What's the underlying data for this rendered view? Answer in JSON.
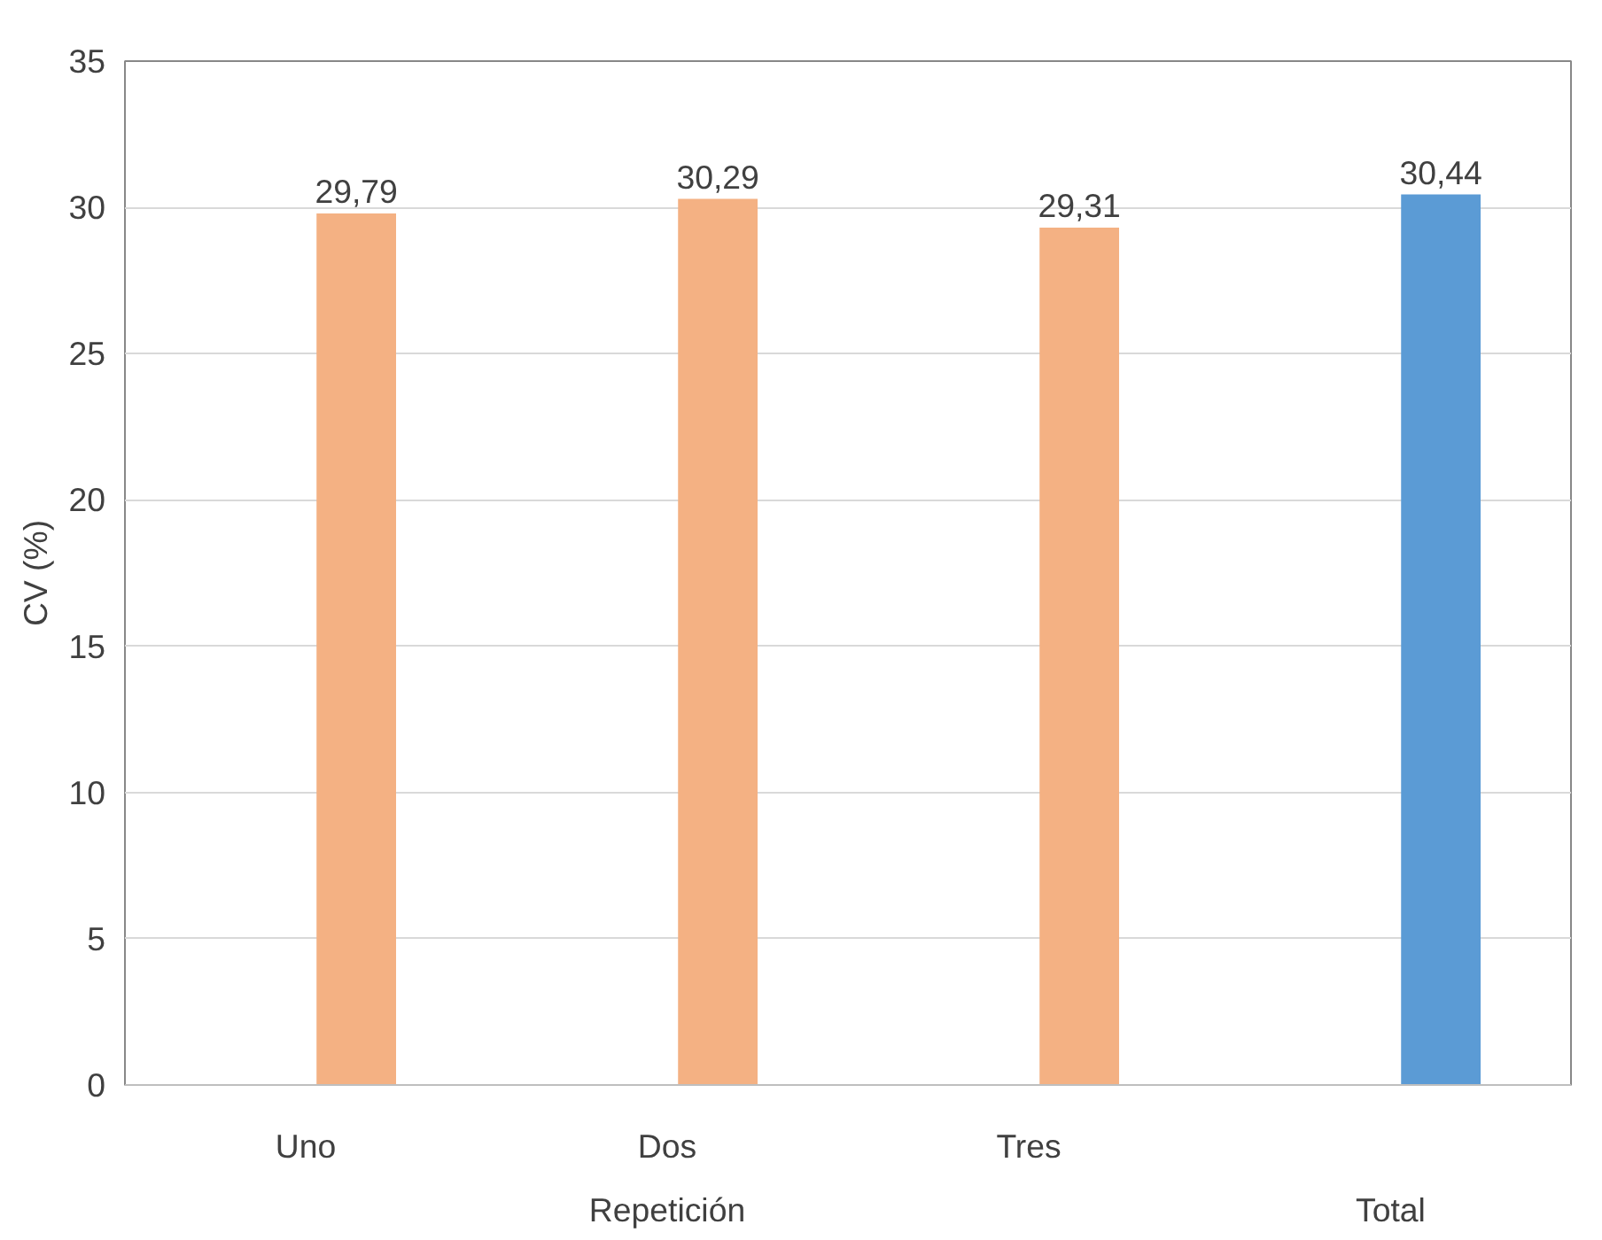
{
  "chart_data": {
    "type": "bar",
    "ylabel": "CV (%)",
    "categories": [
      "Uno",
      "Dos",
      "Tres",
      null
    ],
    "values": [
      29.79,
      30.29,
      29.31,
      30.44
    ],
    "colors": [
      "#f4b183",
      "#f4b183",
      "#f4b183",
      "#5b9bd5"
    ],
    "value_labels": [
      "29,79",
      "30,29",
      "29,31",
      "30,44"
    ],
    "ylim": [
      0,
      35
    ],
    "yticks": [
      0,
      5,
      10,
      15,
      20,
      25,
      30,
      35
    ],
    "grid": "y",
    "annotations": [
      "Repetición",
      "Total"
    ]
  }
}
